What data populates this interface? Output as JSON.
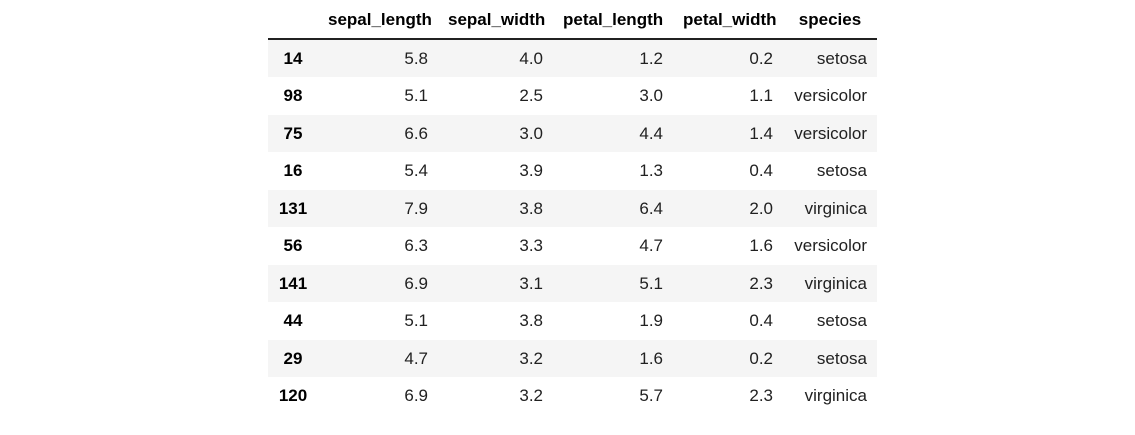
{
  "table": {
    "index_header": "",
    "columns": [
      "sepal_length",
      "sepal_width",
      "petal_length",
      "petal_width",
      "species"
    ],
    "rows": [
      {
        "index": "14",
        "cells": [
          "5.8",
          "4.0",
          "1.2",
          "0.2",
          "setosa"
        ]
      },
      {
        "index": "98",
        "cells": [
          "5.1",
          "2.5",
          "3.0",
          "1.1",
          "versicolor"
        ]
      },
      {
        "index": "75",
        "cells": [
          "6.6",
          "3.0",
          "4.4",
          "1.4",
          "versicolor"
        ]
      },
      {
        "index": "16",
        "cells": [
          "5.4",
          "3.9",
          "1.3",
          "0.4",
          "setosa"
        ]
      },
      {
        "index": "131",
        "cells": [
          "7.9",
          "3.8",
          "6.4",
          "2.0",
          "virginica"
        ]
      },
      {
        "index": "56",
        "cells": [
          "6.3",
          "3.3",
          "4.7",
          "1.6",
          "versicolor"
        ]
      },
      {
        "index": "141",
        "cells": [
          "6.9",
          "3.1",
          "5.1",
          "2.3",
          "virginica"
        ]
      },
      {
        "index": "44",
        "cells": [
          "5.1",
          "3.8",
          "1.9",
          "0.4",
          "setosa"
        ]
      },
      {
        "index": "29",
        "cells": [
          "4.7",
          "3.2",
          "1.6",
          "0.2",
          "setosa"
        ]
      },
      {
        "index": "120",
        "cells": [
          "6.9",
          "3.2",
          "5.7",
          "2.3",
          "virginica"
        ]
      }
    ]
  },
  "chart_data": {
    "type": "table",
    "title": "",
    "columns": [
      "sepal_length",
      "sepal_width",
      "petal_length",
      "petal_width",
      "species"
    ],
    "index": [
      14,
      98,
      75,
      16,
      131,
      56,
      141,
      44,
      29,
      120
    ],
    "rows": [
      [
        5.8,
        4.0,
        1.2,
        0.2,
        "setosa"
      ],
      [
        5.1,
        2.5,
        3.0,
        1.1,
        "versicolor"
      ],
      [
        6.6,
        3.0,
        4.4,
        1.4,
        "versicolor"
      ],
      [
        5.4,
        3.9,
        1.3,
        0.4,
        "setosa"
      ],
      [
        7.9,
        3.8,
        6.4,
        2.0,
        "virginica"
      ],
      [
        6.3,
        3.3,
        4.7,
        1.6,
        "versicolor"
      ],
      [
        6.9,
        3.1,
        5.1,
        2.3,
        "virginica"
      ],
      [
        5.1,
        3.8,
        1.9,
        0.4,
        "setosa"
      ],
      [
        4.7,
        3.2,
        1.6,
        0.2,
        "setosa"
      ],
      [
        6.9,
        3.2,
        5.7,
        2.3,
        "virginica"
      ]
    ],
    "layout_hints": {
      "zebra_striping": "odd rows shaded",
      "header_rule": true,
      "value_alignment": "right",
      "header_alignment": "center"
    }
  },
  "colors": {
    "background": "#ffffff",
    "stripe": "#f5f5f5",
    "header_border": "#212121",
    "header_text": "#000000",
    "text": "#212121"
  }
}
